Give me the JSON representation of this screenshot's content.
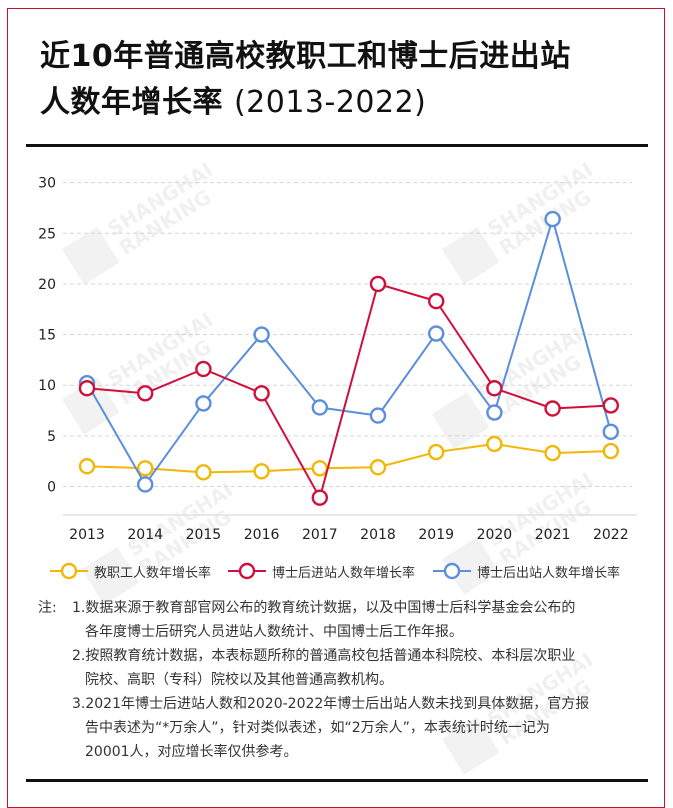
{
  "header": {
    "title_line1": "近10年普通高校教职工和博士后进出站",
    "title_line2_main": "人数年增长率 ",
    "title_line2_paren": "(2013-2022)"
  },
  "watermark": {
    "logo": "软科",
    "line1": "SHANGHAI",
    "line2": "RANKING"
  },
  "chart_data": {
    "type": "line",
    "title": "近10年普通高校教职工和博士后进出站人数年增长率 (2013-2022)",
    "xlabel": "",
    "ylabel": "",
    "ylim": [
      -3,
      30
    ],
    "yticks": [
      0,
      5,
      10,
      15,
      20,
      25,
      30
    ],
    "grid": true,
    "legend_position": "bottom",
    "categories": [
      "2013",
      "2014",
      "2015",
      "2016",
      "2017",
      "2018",
      "2019",
      "2020",
      "2021",
      "2022"
    ],
    "series": [
      {
        "name": "教职工人数年增长率",
        "color": "#F2B705",
        "values": [
          2.0,
          1.8,
          1.4,
          1.5,
          1.8,
          1.9,
          3.4,
          4.2,
          3.3,
          3.5
        ]
      },
      {
        "name": "博士后进站人数年增长率",
        "color": "#D0103A",
        "values": [
          9.7,
          9.2,
          11.6,
          9.2,
          -1.1,
          20.0,
          18.3,
          9.7,
          7.7,
          8.0
        ]
      },
      {
        "name": "博士后出站人数年增长率",
        "color": "#5B8EDB",
        "values": [
          10.2,
          0.2,
          8.2,
          15.0,
          7.8,
          7.0,
          15.1,
          7.3,
          26.4,
          5.4
        ]
      }
    ]
  },
  "notes": {
    "prefix": "注:",
    "items": [
      {
        "num": "1.",
        "line1": "数据来源于教育部官网公布的教育统计数据，以及中国博士后科学基金会公布的",
        "line2": "各年度博士后研究人员进站人数统计、中国博士后工作年报。"
      },
      {
        "num": "2.",
        "line1": "按照教育统计数据，本表标题所称的普通高校包括普通本科院校、本科层次职业",
        "line2": "院校、高职（专科）院校以及其他普通高教机构。"
      },
      {
        "num": "3.",
        "line1": "2021年博士后进站人数和2020-2022年博士后出站人数未找到具体数据，官方报",
        "line2": "告中表述为“*万余人”，针对类似表述，如“2万余人”，本表统计时统一记为",
        "line3": "20001人，对应增长率仅供参考。"
      }
    ]
  }
}
